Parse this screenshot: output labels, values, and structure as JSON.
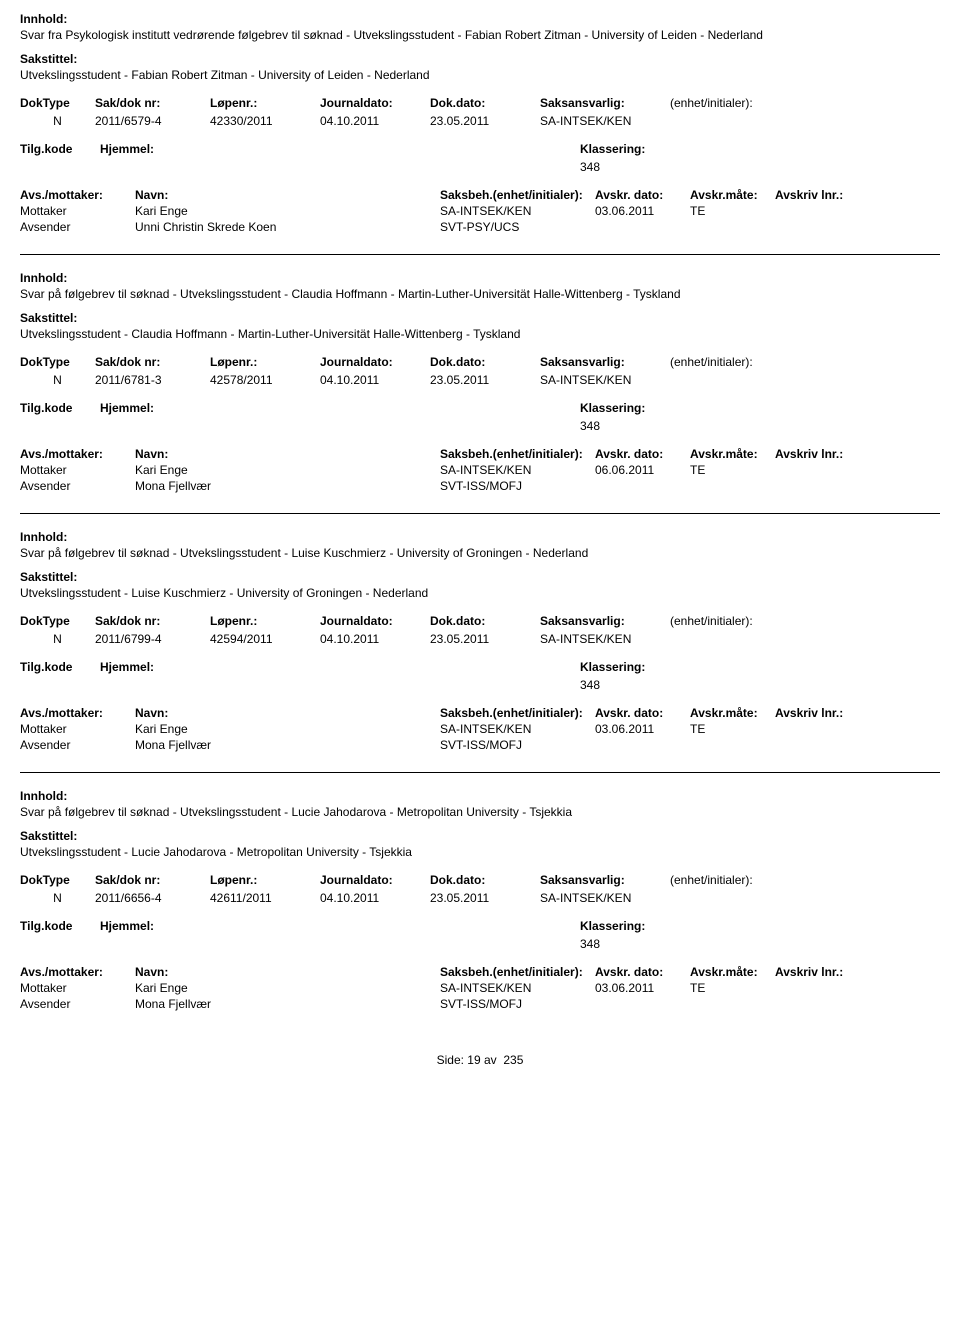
{
  "labels": {
    "innhold": "Innhold:",
    "sakstittel": "Sakstittel:",
    "doktype": "DokType",
    "sakdok": "Sak/dok nr:",
    "lopenr": "Løpenr.:",
    "journaldato": "Journaldato:",
    "dokdato": "Dok.dato:",
    "saksansvarlig": "Saksansvarlig:",
    "enhet": "(enhet/initialer):",
    "tilgkode": "Tilg.kode",
    "hjemmel": "Hjemmel:",
    "klassering": "Klassering:",
    "avsmottaker": "Avs./mottaker:",
    "navn": "Navn:",
    "saksbeh": "Saksbeh.(enhet/initialer):",
    "avskrdato": "Avskr. dato:",
    "avskrmate": "Avskr.måte:",
    "avskrivlnr": "Avskriv lnr.:",
    "mottaker": "Mottaker",
    "avsender": "Avsender",
    "side": "Side:",
    "av": "av"
  },
  "footer": {
    "page": "19",
    "total": "235"
  },
  "records": [
    {
      "innhold": "Svar fra Psykologisk institutt vedrørende følgebrev til søknad - Utvekslingsstudent - Fabian Robert Zitman - University of Leiden - Nederland",
      "sakstittel": "Utvekslingsstudent - Fabian Robert Zitman - University of Leiden - Nederland",
      "doktype": "N",
      "sakdok": "2011/6579-4",
      "lopenr": "42330/2011",
      "journaldato": "04.10.2011",
      "dokdato": "23.05.2011",
      "saksansvarlig": "SA-INTSEK/KEN",
      "enhet": "",
      "tilgkode": "",
      "hjemmel": "",
      "klassering": "348",
      "parties": [
        {
          "role": "Mottaker",
          "navn": "Kari Enge",
          "saksbeh": "SA-INTSEK/KEN",
          "avskrdato": "03.06.2011",
          "avskrmate": "TE",
          "avskrivlnr": ""
        },
        {
          "role": "Avsender",
          "navn": "Unni Christin Skrede Koen",
          "saksbeh": "SVT-PSY/UCS",
          "avskrdato": "",
          "avskrmate": "",
          "avskrivlnr": ""
        }
      ]
    },
    {
      "innhold": "Svar på følgebrev til søknad - Utvekslingsstudent - Claudia Hoffmann - Martin-Luther-Universität Halle-Wittenberg - Tyskland",
      "sakstittel": "Utvekslingsstudent - Claudia Hoffmann - Martin-Luther-Universität Halle-Wittenberg - Tyskland",
      "doktype": "N",
      "sakdok": "2011/6781-3",
      "lopenr": "42578/2011",
      "journaldato": "04.10.2011",
      "dokdato": "23.05.2011",
      "saksansvarlig": "SA-INTSEK/KEN",
      "enhet": "",
      "tilgkode": "",
      "hjemmel": "",
      "klassering": "348",
      "parties": [
        {
          "role": "Mottaker",
          "navn": "Kari Enge",
          "saksbeh": "SA-INTSEK/KEN",
          "avskrdato": "06.06.2011",
          "avskrmate": "TE",
          "avskrivlnr": ""
        },
        {
          "role": "Avsender",
          "navn": "Mona Fjellvær",
          "saksbeh": "SVT-ISS/MOFJ",
          "avskrdato": "",
          "avskrmate": "",
          "avskrivlnr": ""
        }
      ]
    },
    {
      "innhold": "Svar på følgebrev til søknad - Utvekslingsstudent - Luise Kuschmierz - University of Groningen - Nederland",
      "sakstittel": "Utvekslingsstudent - Luise Kuschmierz - University of Groningen - Nederland",
      "doktype": "N",
      "sakdok": "2011/6799-4",
      "lopenr": "42594/2011",
      "journaldato": "04.10.2011",
      "dokdato": "23.05.2011",
      "saksansvarlig": "SA-INTSEK/KEN",
      "enhet": "",
      "tilgkode": "",
      "hjemmel": "",
      "klassering": "348",
      "parties": [
        {
          "role": "Mottaker",
          "navn": "Kari Enge",
          "saksbeh": "SA-INTSEK/KEN",
          "avskrdato": "03.06.2011",
          "avskrmate": "TE",
          "avskrivlnr": ""
        },
        {
          "role": "Avsender",
          "navn": "Mona Fjellvær",
          "saksbeh": "SVT-ISS/MOFJ",
          "avskrdato": "",
          "avskrmate": "",
          "avskrivlnr": ""
        }
      ]
    },
    {
      "innhold": "Svar på følgebrev til søknad - Utvekslingsstudent - Lucie Jahodarova - Metropolitan University - Tsjekkia",
      "sakstittel": "Utvekslingsstudent - Lucie Jahodarova - Metropolitan University - Tsjekkia",
      "doktype": "N",
      "sakdok": "2011/6656-4",
      "lopenr": "42611/2011",
      "journaldato": "04.10.2011",
      "dokdato": "23.05.2011",
      "saksansvarlig": "SA-INTSEK/KEN",
      "enhet": "",
      "tilgkode": "",
      "hjemmel": "",
      "klassering": "348",
      "parties": [
        {
          "role": "Mottaker",
          "navn": "Kari Enge",
          "saksbeh": "SA-INTSEK/KEN",
          "avskrdato": "03.06.2011",
          "avskrmate": "TE",
          "avskrivlnr": ""
        },
        {
          "role": "Avsender",
          "navn": "Mona Fjellvær",
          "saksbeh": "SVT-ISS/MOFJ",
          "avskrdato": "",
          "avskrmate": "",
          "avskrivlnr": ""
        }
      ]
    }
  ]
}
